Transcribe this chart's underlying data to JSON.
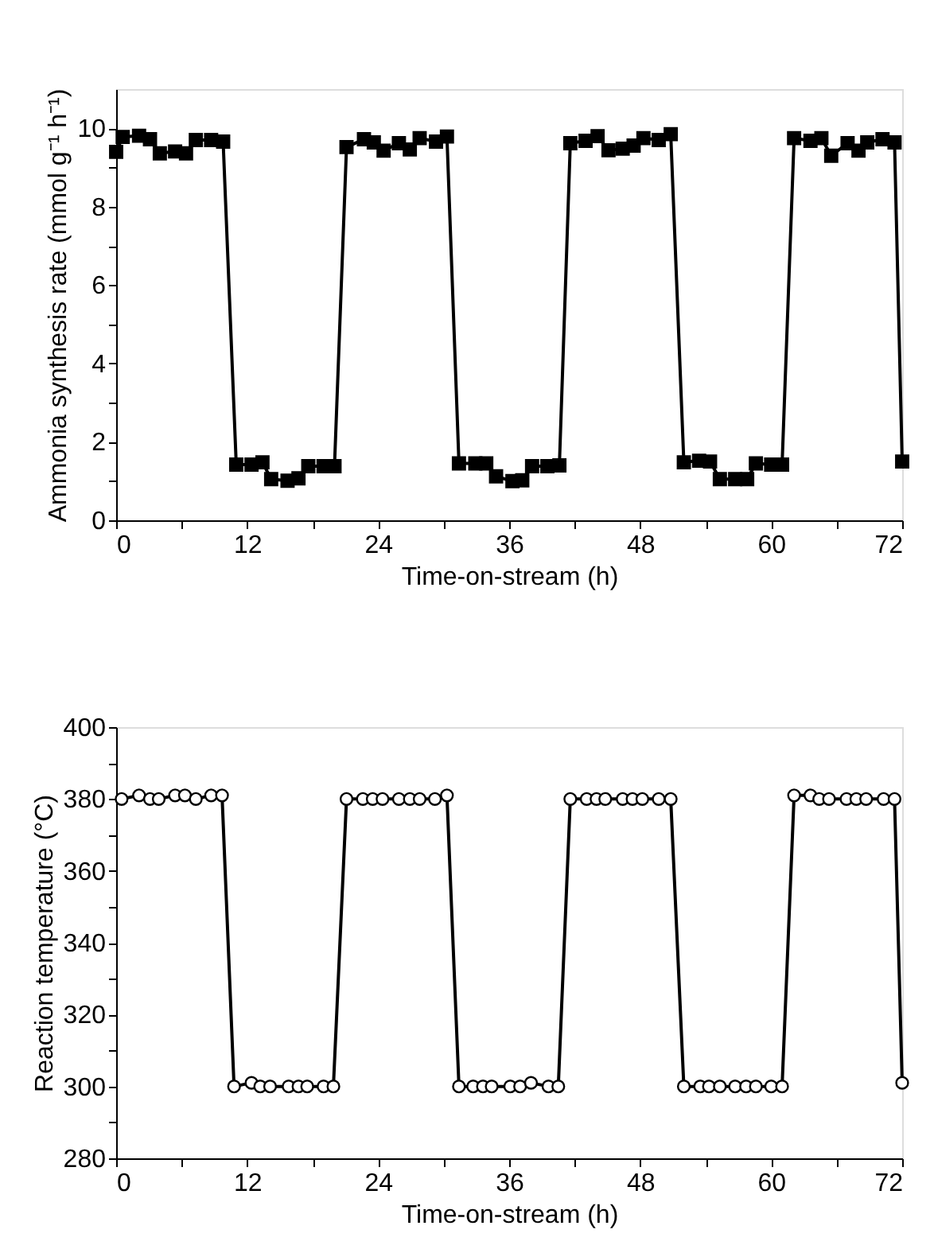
{
  "chart_data": [
    {
      "type": "line",
      "xlabel": "Time-on-stream (h)",
      "ylabel": "Ammonia synthesis rate (mmol g⁻¹ h⁻¹)",
      "xlim": [
        0,
        72
      ],
      "ylim": [
        0,
        11
      ],
      "xticks": [
        0,
        {
          "value": 6,
          "label": null
        },
        12,
        {
          "value": 18,
          "label": null
        },
        24,
        {
          "value": 30,
          "label": null
        },
        36,
        {
          "value": 42,
          "label": null
        },
        48,
        {
          "value": 54,
          "label": null
        },
        60,
        {
          "value": 66,
          "label": null
        },
        72
      ],
      "yticks": [
        0,
        {
          "value": 1,
          "label": null
        },
        2,
        {
          "value": 3,
          "label": null
        },
        4,
        {
          "value": 5,
          "label": null
        },
        6,
        {
          "value": 7,
          "label": null
        },
        8,
        {
          "value": 9,
          "label": null
        },
        10
      ],
      "grid": false,
      "marker": "square",
      "line_style": "solid",
      "series": [
        {
          "color": "#000000",
          "x": [
            0,
            0.6,
            2.1,
            3.1,
            4.0,
            5.4,
            6.4,
            7.3,
            8.7,
            9.8,
            11.0,
            12.4,
            13.4,
            14.2,
            15.7,
            16.7,
            17.6,
            19.0,
            20.0,
            21.1,
            22.7,
            23.6,
            24.5,
            25.9,
            26.9,
            27.8,
            29.3,
            30.3,
            31.4,
            32.9,
            33.9,
            34.8,
            36.3,
            37.2,
            38.1,
            39.5,
            40.6,
            41.6,
            43.0,
            44.1,
            45.1,
            46.4,
            47.4,
            48.3,
            49.7,
            50.8,
            52.0,
            53.4,
            54.4,
            55.3,
            56.7,
            57.8,
            58.6,
            60.0,
            61.0,
            62.1,
            63.6,
            64.6,
            65.5,
            67.0,
            68.0,
            68.8,
            70.2,
            71.3,
            72
          ],
          "values": [
            9.4,
            9.78,
            9.81,
            9.72,
            9.36,
            9.41,
            9.36,
            9.7,
            9.7,
            9.66,
            1.42,
            1.42,
            1.48,
            1.05,
            1.01,
            1.07,
            1.38,
            1.38,
            1.38,
            9.52,
            9.72,
            9.64,
            9.43,
            9.62,
            9.46,
            9.75,
            9.66,
            9.79,
            1.45,
            1.45,
            1.45,
            1.12,
            1.0,
            1.02,
            1.38,
            1.38,
            1.4,
            9.62,
            9.68,
            9.8,
            9.44,
            9.48,
            9.56,
            9.75,
            9.7,
            9.85,
            1.48,
            1.52,
            1.5,
            1.05,
            1.05,
            1.05,
            1.45,
            1.42,
            1.42,
            9.75,
            9.68,
            9.75,
            9.3,
            9.62,
            9.43,
            9.64,
            9.72,
            9.64,
            1.5
          ]
        }
      ]
    },
    {
      "type": "line",
      "xlabel": "Time-on-stream (h)",
      "ylabel": "Reaction temperature (°C)",
      "xlim": [
        0,
        72
      ],
      "ylim": [
        280,
        400
      ],
      "xticks": [
        0,
        {
          "value": 6,
          "label": null
        },
        12,
        {
          "value": 18,
          "label": null
        },
        24,
        {
          "value": 30,
          "label": null
        },
        36,
        {
          "value": 42,
          "label": null
        },
        48,
        {
          "value": 54,
          "label": null
        },
        60,
        {
          "value": 66,
          "label": null
        },
        72
      ],
      "yticks": [
        280,
        {
          "value": 290,
          "label": null
        },
        300,
        {
          "value": 310,
          "label": null
        },
        320,
        {
          "value": 330,
          "label": null
        },
        340,
        {
          "value": 350,
          "label": null
        },
        360,
        {
          "value": 370,
          "label": null
        },
        380,
        {
          "value": 390,
          "label": null
        },
        400
      ],
      "grid": false,
      "marker": "circle",
      "line_style": "solid",
      "series": [
        {
          "color": "#000000",
          "x": [
            0.5,
            2.1,
            3.1,
            3.9,
            5.4,
            6.3,
            7.3,
            8.7,
            9.7,
            10.8,
            12.4,
            13.2,
            14.1,
            15.8,
            16.7,
            17.5,
            19.0,
            19.9,
            21.1,
            22.6,
            23.5,
            24.4,
            25.9,
            26.9,
            27.8,
            29.2,
            30.3,
            31.4,
            32.7,
            33.6,
            34.4,
            36.1,
            37.0,
            38.0,
            39.6,
            40.5,
            41.6,
            43.1,
            44.0,
            44.8,
            46.4,
            47.3,
            48.2,
            49.7,
            50.8,
            52.0,
            53.5,
            54.3,
            55.3,
            56.7,
            57.7,
            58.6,
            60.0,
            61.0,
            62.1,
            63.6,
            64.4,
            65.3,
            66.9,
            67.8,
            68.7,
            70.3,
            71.3,
            72.0
          ],
          "values": [
            380,
            381,
            380,
            380,
            381,
            381,
            380,
            381,
            381,
            300,
            301,
            300,
            300,
            300,
            300,
            300,
            300,
            300,
            380,
            380,
            380,
            380,
            380,
            380,
            380,
            380,
            381,
            300,
            300,
            300,
            300,
            300,
            300,
            301,
            300,
            300,
            380,
            380,
            380,
            380,
            380,
            380,
            380,
            380,
            380,
            300,
            300,
            300,
            300,
            300,
            300,
            300,
            300,
            300,
            381,
            381,
            380,
            380,
            380,
            380,
            380,
            380,
            380,
            301
          ]
        }
      ]
    }
  ]
}
